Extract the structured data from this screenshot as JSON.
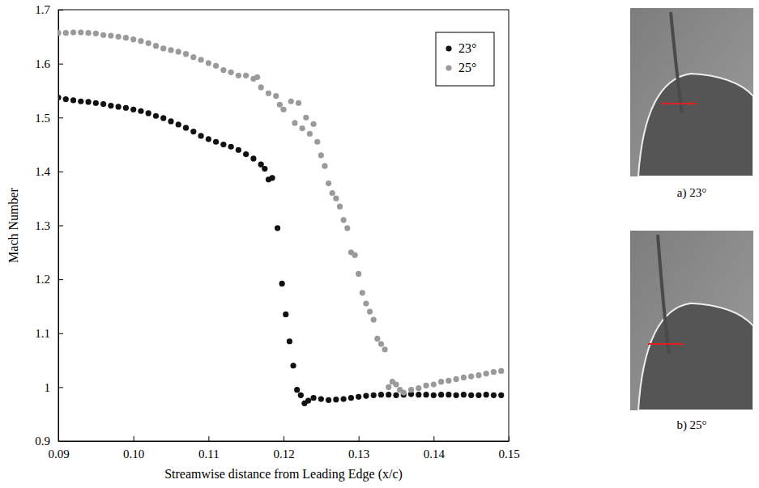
{
  "chart_data": {
    "type": "scatter",
    "x_label": "Streamwise distance from Leading Edge (x/c)",
    "y_label": "Mach Number",
    "xlim": [
      0.09,
      0.15
    ],
    "xticks": [
      0.09,
      {
        "value": 0.1,
        "label": "0.10"
      },
      0.11,
      0.12,
      0.13,
      0.14,
      0.15
    ],
    "ylim": [
      0.9,
      1.7
    ],
    "yticks": [
      0.9,
      1,
      1.1,
      1.2,
      1.3,
      1.4,
      1.5,
      1.6,
      1.7
    ],
    "grid": false,
    "legend": "upper right",
    "marker": "circle",
    "series": [
      {
        "name": "23°",
        "color": "#111111",
        "x": [
          0.09,
          0.091,
          0.092,
          0.093,
          0.094,
          0.095,
          0.096,
          0.097,
          0.098,
          0.099,
          0.1,
          0.101,
          0.102,
          0.103,
          0.104,
          0.105,
          0.106,
          0.107,
          0.108,
          0.109,
          0.11,
          0.111,
          0.112,
          0.113,
          0.114,
          0.115,
          0.116,
          0.117,
          0.1175,
          0.118,
          0.1185,
          0.1192,
          0.1198,
          0.1203,
          0.1208,
          0.1213,
          0.1218,
          0.1223,
          0.1228,
          0.1233,
          0.124,
          0.125,
          0.126,
          0.127,
          0.128,
          0.129,
          0.13,
          0.131,
          0.132,
          0.133,
          0.134,
          0.135,
          0.136,
          0.137,
          0.138,
          0.139,
          0.14,
          0.141,
          0.142,
          0.143,
          0.144,
          0.145,
          0.146,
          0.147,
          0.148,
          0.149
        ],
        "values": [
          1.537,
          1.534,
          1.532,
          1.53,
          1.529,
          1.527,
          1.525,
          1.522,
          1.52,
          1.518,
          1.515,
          1.512,
          1.508,
          1.503,
          1.499,
          1.493,
          1.487,
          1.481,
          1.474,
          1.466,
          1.46,
          1.455,
          1.45,
          1.446,
          1.44,
          1.432,
          1.424,
          1.413,
          1.405,
          1.385,
          1.388,
          1.295,
          1.192,
          1.135,
          1.085,
          1.04,
          0.995,
          0.985,
          0.97,
          0.975,
          0.98,
          0.978,
          0.976,
          0.977,
          0.978,
          0.98,
          0.982,
          0.984,
          0.985,
          0.986,
          0.986,
          0.985,
          0.986,
          0.987,
          0.986,
          0.986,
          0.985,
          0.986,
          0.986,
          0.985,
          0.986,
          0.985,
          0.985,
          0.986,
          0.985,
          0.985
        ]
      },
      {
        "name": "25°",
        "color": "#9a9a9a",
        "x": [
          0.09,
          0.091,
          0.092,
          0.093,
          0.094,
          0.095,
          0.096,
          0.097,
          0.098,
          0.099,
          0.1,
          0.101,
          0.102,
          0.103,
          0.104,
          0.105,
          0.106,
          0.107,
          0.108,
          0.109,
          0.11,
          0.111,
          0.112,
          0.113,
          0.114,
          0.115,
          0.116,
          0.1165,
          0.117,
          0.118,
          0.119,
          0.1195,
          0.12,
          0.121,
          0.1215,
          0.122,
          0.1225,
          0.123,
          0.1235,
          0.124,
          0.1245,
          0.125,
          0.1255,
          0.126,
          0.1265,
          0.127,
          0.1275,
          0.128,
          0.1285,
          0.129,
          0.1295,
          0.13,
          0.1305,
          0.131,
          0.1315,
          0.132,
          0.1325,
          0.133,
          0.1335,
          0.134,
          0.1345,
          0.135,
          0.1355,
          0.136,
          0.137,
          0.138,
          0.139,
          0.14,
          0.141,
          0.142,
          0.143,
          0.144,
          0.145,
          0.146,
          0.147,
          0.148,
          0.149
        ],
        "values": [
          1.657,
          1.657,
          1.658,
          1.658,
          1.657,
          1.656,
          1.653,
          1.652,
          1.65,
          1.648,
          1.645,
          1.642,
          1.638,
          1.633,
          1.628,
          1.625,
          1.622,
          1.618,
          1.612,
          1.607,
          1.601,
          1.596,
          1.588,
          1.584,
          1.578,
          1.578,
          1.572,
          1.575,
          1.556,
          1.545,
          1.54,
          1.524,
          1.515,
          1.53,
          1.49,
          1.527,
          1.48,
          1.5,
          1.47,
          1.488,
          1.455,
          1.43,
          1.41,
          1.378,
          1.36,
          1.35,
          1.335,
          1.31,
          1.295,
          1.25,
          1.245,
          1.21,
          1.175,
          1.155,
          1.14,
          1.125,
          1.09,
          1.08,
          1.07,
          1.0,
          1.01,
          1.005,
          0.995,
          0.99,
          0.995,
          0.998,
          1.003,
          1.005,
          1.01,
          1.012,
          1.015,
          1.018,
          1.02,
          1.022,
          1.025,
          1.028,
          1.03
        ]
      }
    ]
  },
  "images": [
    {
      "caption": "a) 23°"
    },
    {
      "caption": "b) 25°"
    }
  ]
}
